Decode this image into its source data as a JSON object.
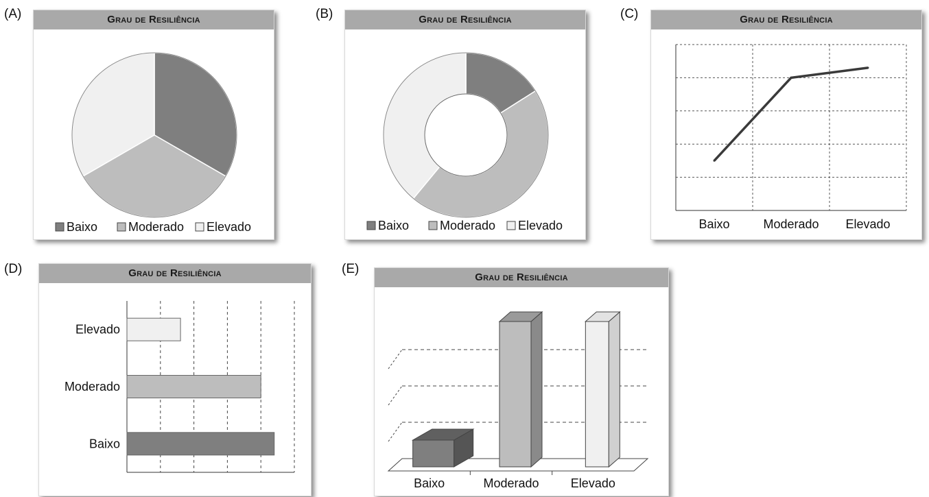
{
  "panels": [
    {
      "label": "(A)",
      "title": "Grau de Resiliência"
    },
    {
      "label": "(B)",
      "title": "Grau de Resiliência"
    },
    {
      "label": "(C)",
      "title": "Grau de Resiliência"
    },
    {
      "label": "(D)",
      "title": "Grau de Resiliência"
    },
    {
      "label": "(E)",
      "title": "Grau de Resiliência"
    }
  ],
  "colors": {
    "baixo": "#7f7f7f",
    "moderado": "#bdbdbd",
    "elevado": "#f0f0f0",
    "line": "#3a3a3a",
    "outline": "#555555"
  },
  "chart_data": [
    {
      "type": "pie",
      "title": "Grau de Resiliência",
      "categories": [
        "Baixo",
        "Moderado",
        "Elevado"
      ],
      "values": [
        33.3,
        33.3,
        33.3
      ],
      "legend": "bottom"
    },
    {
      "type": "pie",
      "subtype": "donut",
      "title": "Grau de Resiliência",
      "categories": [
        "Baixo",
        "Moderado",
        "Elevado"
      ],
      "values": [
        16,
        45,
        39
      ],
      "legend": "bottom"
    },
    {
      "type": "line",
      "title": "Grau de Resiliência",
      "categories": [
        "Baixo",
        "Moderado",
        "Elevado"
      ],
      "values": [
        1.5,
        4,
        4.3
      ],
      "ylim": [
        0,
        5
      ],
      "grid": true
    },
    {
      "type": "bar",
      "orientation": "horizontal",
      "title": "Grau de Resiliência",
      "categories": [
        "Baixo",
        "Moderado",
        "Elevado"
      ],
      "values": [
        4.4,
        4,
        1.6
      ],
      "xlim": [
        0,
        5
      ],
      "grid": true
    },
    {
      "type": "bar",
      "subtype": "3d-column",
      "title": "Grau de Resiliência",
      "categories": [
        "Baixo",
        "Moderado",
        "Elevado"
      ],
      "values": [
        1,
        4,
        4
      ],
      "ylim": [
        0,
        5
      ],
      "grid": true
    }
  ]
}
